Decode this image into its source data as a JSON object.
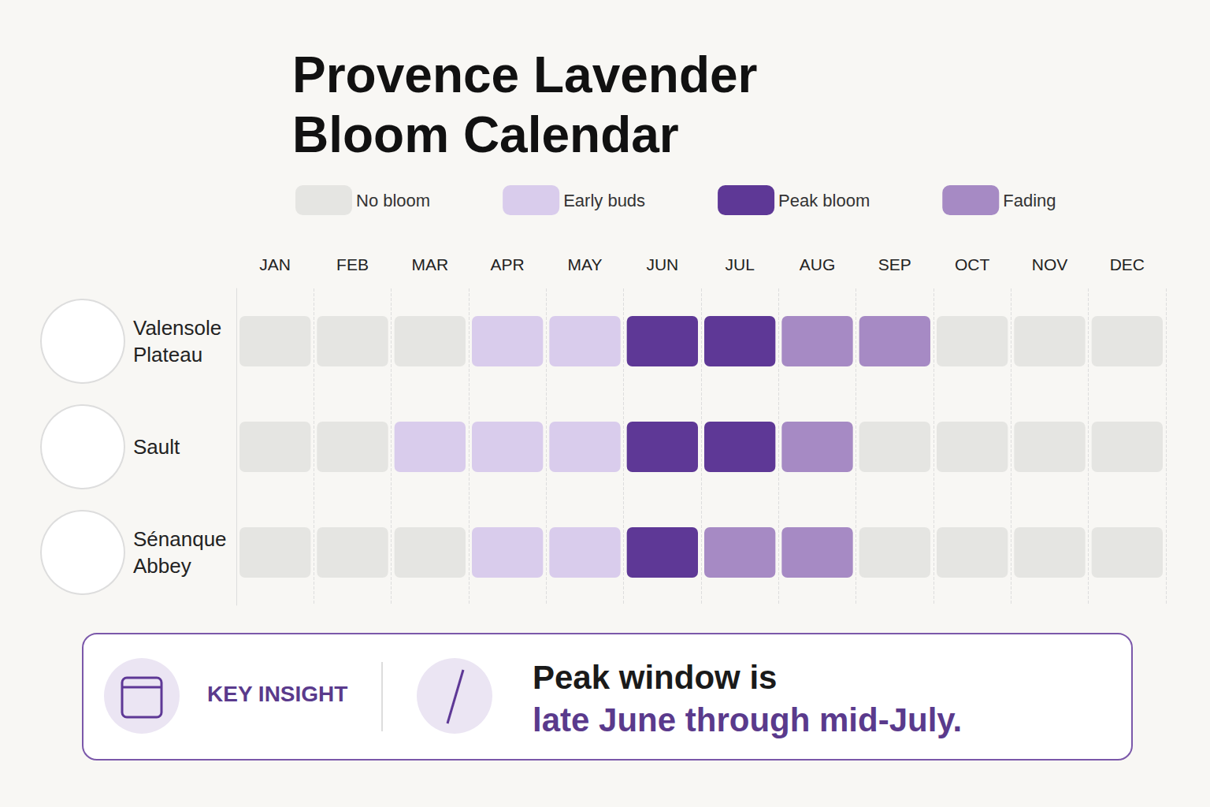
{
  "chart_data": {
    "type": "heatmap",
    "title": "Provence Lavender Bloom Calendar",
    "categories": [
      "JAN",
      "FEB",
      "MAR",
      "APR",
      "MAY",
      "JUN",
      "JUL",
      "AUG",
      "SEP",
      "OCT",
      "NOV",
      "DEC"
    ],
    "rows": [
      "Valensole Plateau",
      "Sault",
      "Sénanque Abbey"
    ],
    "series": [
      {
        "name": "No bloom",
        "color": "#e5e5e2"
      },
      {
        "name": "Early buds",
        "color": "#d9ccec"
      },
      {
        "name": "Peak bloom",
        "color": "#5e3896"
      },
      {
        "name": "Fading",
        "color": "#a68ac4"
      }
    ],
    "cells": [
      [
        "No bloom",
        "No bloom",
        "No bloom",
        "Early buds",
        "Early buds",
        "Peak bloom",
        "Peak bloom",
        "Fading",
        "Fading",
        "No bloom",
        "No bloom",
        "No bloom"
      ],
      [
        "No bloom",
        "No bloom",
        "Early buds",
        "Early buds",
        "Early buds",
        "Peak bloom",
        "Peak bloom",
        "Fading",
        "No bloom",
        "No bloom",
        "No bloom",
        "No bloom"
      ],
      [
        "No bloom",
        "No bloom",
        "No bloom",
        "Early buds",
        "Early buds",
        "Peak bloom",
        "Fading",
        "Fading",
        "No bloom",
        "No bloom",
        "No bloom",
        "No bloom"
      ]
    ],
    "legend": "top",
    "annotations": [
      {
        "heading": "KEY INSIGHT",
        "text": "Peak window is",
        "highlight": "late June through mid-July."
      }
    ]
  }
}
